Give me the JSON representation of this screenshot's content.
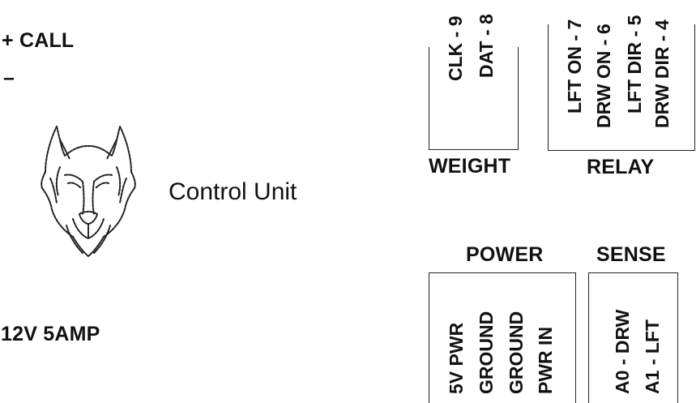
{
  "top_left": {
    "call_plus": "+ CALL",
    "call_minus": "–"
  },
  "supply": "12V 5AMP",
  "logo": {
    "icon": "wolf-head-icon",
    "text": "Control Unit"
  },
  "weight": {
    "label": "WEIGHT",
    "pins": [
      "CLK - 9",
      "DAT - 8"
    ]
  },
  "relay": {
    "label": "RELAY",
    "pins": [
      "LFT ON - 7",
      "DRW ON - 6",
      "LFT DIR - 5",
      "DRW DIR - 4"
    ]
  },
  "power": {
    "label": "POWER",
    "pins": [
      "5V PWR",
      "GROUND",
      "GROUND",
      "PWR IN"
    ]
  },
  "sense": {
    "label": "SENSE",
    "pins": [
      "A0 - DRW",
      "A1 - LFT"
    ]
  }
}
